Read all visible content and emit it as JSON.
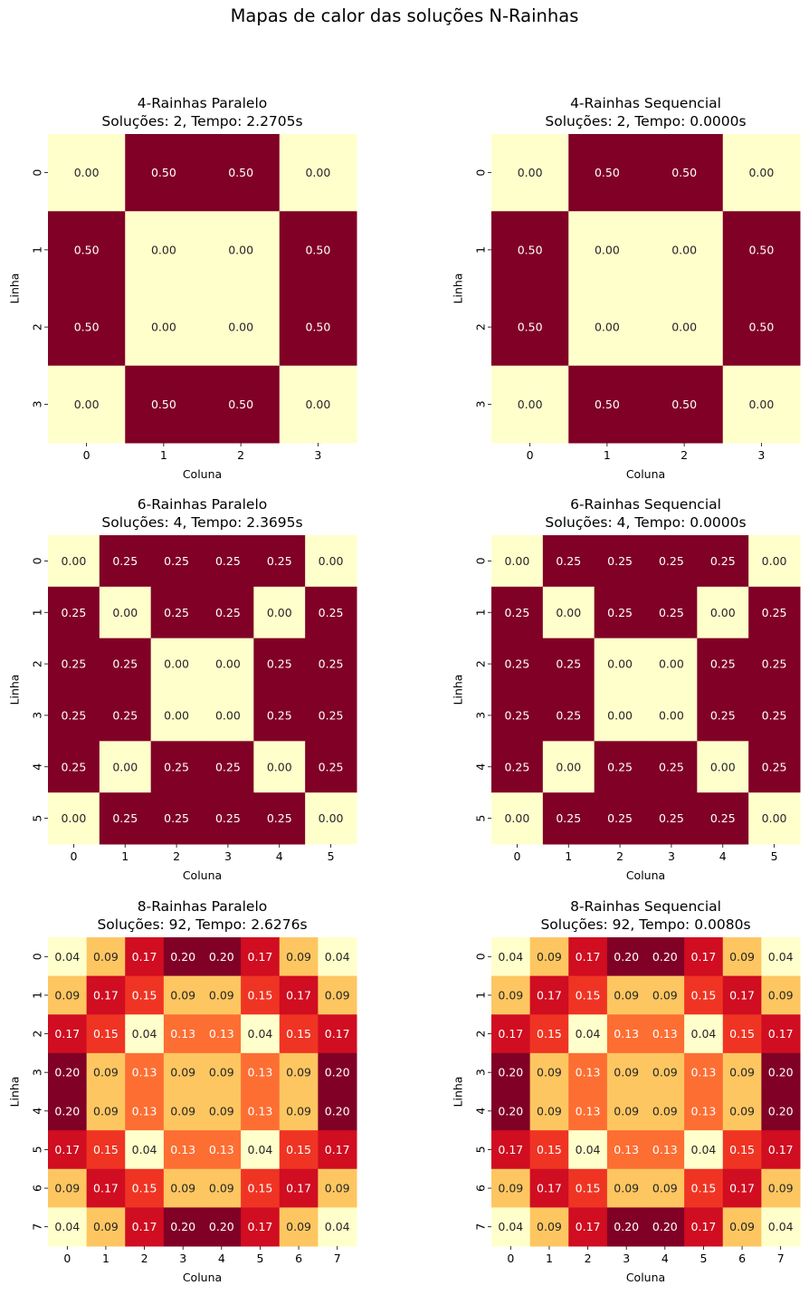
{
  "figure": {
    "title": "Mapas de calor das soluções N-Rainhas"
  },
  "chart_data": [
    {
      "type": "heatmap",
      "title": "4-Rainhas Paralelo\nSoluções: 2, Tempo: 2.2705s",
      "xlabel": "Coluna",
      "ylabel": "Linha",
      "x_ticks": [
        "0",
        "1",
        "2",
        "3"
      ],
      "y_ticks": [
        "0",
        "1",
        "2",
        "3"
      ],
      "values": [
        [
          0.0,
          0.5,
          0.5,
          0.0
        ],
        [
          0.5,
          0.0,
          0.0,
          0.5
        ],
        [
          0.5,
          0.0,
          0.0,
          0.5
        ],
        [
          0.0,
          0.5,
          0.5,
          0.0
        ]
      ],
      "colormap": "YlOrRd",
      "colorbar": false
    },
    {
      "type": "heatmap",
      "title": "4-Rainhas Sequencial\nSoluções: 2, Tempo: 0.0000s",
      "xlabel": "Coluna",
      "ylabel": "Linha",
      "x_ticks": [
        "0",
        "1",
        "2",
        "3"
      ],
      "y_ticks": [
        "0",
        "1",
        "2",
        "3"
      ],
      "values": [
        [
          0.0,
          0.5,
          0.5,
          0.0
        ],
        [
          0.5,
          0.0,
          0.0,
          0.5
        ],
        [
          0.5,
          0.0,
          0.0,
          0.5
        ],
        [
          0.0,
          0.5,
          0.5,
          0.0
        ]
      ],
      "colormap": "YlOrRd",
      "colorbar": false
    },
    {
      "type": "heatmap",
      "title": "6-Rainhas Paralelo\nSoluções: 4, Tempo: 2.3695s",
      "xlabel": "Coluna",
      "ylabel": "Linha",
      "x_ticks": [
        "0",
        "1",
        "2",
        "3",
        "4",
        "5"
      ],
      "y_ticks": [
        "0",
        "1",
        "2",
        "3",
        "4",
        "5"
      ],
      "values": [
        [
          0.0,
          0.25,
          0.25,
          0.25,
          0.25,
          0.0
        ],
        [
          0.25,
          0.0,
          0.25,
          0.25,
          0.0,
          0.25
        ],
        [
          0.25,
          0.25,
          0.0,
          0.0,
          0.25,
          0.25
        ],
        [
          0.25,
          0.25,
          0.0,
          0.0,
          0.25,
          0.25
        ],
        [
          0.25,
          0.0,
          0.25,
          0.25,
          0.0,
          0.25
        ],
        [
          0.0,
          0.25,
          0.25,
          0.25,
          0.25,
          0.0
        ]
      ],
      "colormap": "YlOrRd",
      "colorbar": false
    },
    {
      "type": "heatmap",
      "title": "6-Rainhas Sequencial\nSoluções: 4, Tempo: 0.0000s",
      "xlabel": "Coluna",
      "ylabel": "Linha",
      "x_ticks": [
        "0",
        "1",
        "2",
        "3",
        "4",
        "5"
      ],
      "y_ticks": [
        "0",
        "1",
        "2",
        "3",
        "4",
        "5"
      ],
      "values": [
        [
          0.0,
          0.25,
          0.25,
          0.25,
          0.25,
          0.0
        ],
        [
          0.25,
          0.0,
          0.25,
          0.25,
          0.0,
          0.25
        ],
        [
          0.25,
          0.25,
          0.0,
          0.0,
          0.25,
          0.25
        ],
        [
          0.25,
          0.25,
          0.0,
          0.0,
          0.25,
          0.25
        ],
        [
          0.25,
          0.0,
          0.25,
          0.25,
          0.0,
          0.25
        ],
        [
          0.0,
          0.25,
          0.25,
          0.25,
          0.25,
          0.0
        ]
      ],
      "colormap": "YlOrRd",
      "colorbar": false
    },
    {
      "type": "heatmap",
      "title": "8-Rainhas Paralelo\nSoluções: 92, Tempo: 2.6276s",
      "xlabel": "Coluna",
      "ylabel": "Linha",
      "x_ticks": [
        "0",
        "1",
        "2",
        "3",
        "4",
        "5",
        "6",
        "7"
      ],
      "y_ticks": [
        "0",
        "1",
        "2",
        "3",
        "4",
        "5",
        "6",
        "7"
      ],
      "values": [
        [
          0.04,
          0.09,
          0.17,
          0.2,
          0.2,
          0.17,
          0.09,
          0.04
        ],
        [
          0.09,
          0.17,
          0.15,
          0.09,
          0.09,
          0.15,
          0.17,
          0.09
        ],
        [
          0.17,
          0.15,
          0.04,
          0.13,
          0.13,
          0.04,
          0.15,
          0.17
        ],
        [
          0.2,
          0.09,
          0.13,
          0.09,
          0.09,
          0.13,
          0.09,
          0.2
        ],
        [
          0.2,
          0.09,
          0.13,
          0.09,
          0.09,
          0.13,
          0.09,
          0.2
        ],
        [
          0.17,
          0.15,
          0.04,
          0.13,
          0.13,
          0.04,
          0.15,
          0.17
        ],
        [
          0.09,
          0.17,
          0.15,
          0.09,
          0.09,
          0.15,
          0.17,
          0.09
        ],
        [
          0.04,
          0.09,
          0.17,
          0.2,
          0.2,
          0.17,
          0.09,
          0.04
        ]
      ],
      "colormap": "YlOrRd",
      "colorbar": false
    },
    {
      "type": "heatmap",
      "title": "8-Rainhas Sequencial\nSoluções: 92, Tempo: 0.0080s",
      "xlabel": "Coluna",
      "ylabel": "Linha",
      "x_ticks": [
        "0",
        "1",
        "2",
        "3",
        "4",
        "5",
        "6",
        "7"
      ],
      "y_ticks": [
        "0",
        "1",
        "2",
        "3",
        "4",
        "5",
        "6",
        "7"
      ],
      "values": [
        [
          0.04,
          0.09,
          0.17,
          0.2,
          0.2,
          0.17,
          0.09,
          0.04
        ],
        [
          0.09,
          0.17,
          0.15,
          0.09,
          0.09,
          0.15,
          0.17,
          0.09
        ],
        [
          0.17,
          0.15,
          0.04,
          0.13,
          0.13,
          0.04,
          0.15,
          0.17
        ],
        [
          0.2,
          0.09,
          0.13,
          0.09,
          0.09,
          0.13,
          0.09,
          0.2
        ],
        [
          0.2,
          0.09,
          0.13,
          0.09,
          0.09,
          0.13,
          0.09,
          0.2
        ],
        [
          0.17,
          0.15,
          0.04,
          0.13,
          0.13,
          0.04,
          0.15,
          0.17
        ],
        [
          0.09,
          0.17,
          0.15,
          0.09,
          0.09,
          0.15,
          0.17,
          0.09
        ],
        [
          0.04,
          0.09,
          0.17,
          0.2,
          0.2,
          0.17,
          0.09,
          0.04
        ]
      ],
      "colormap": "YlOrRd",
      "colorbar": false
    }
  ]
}
